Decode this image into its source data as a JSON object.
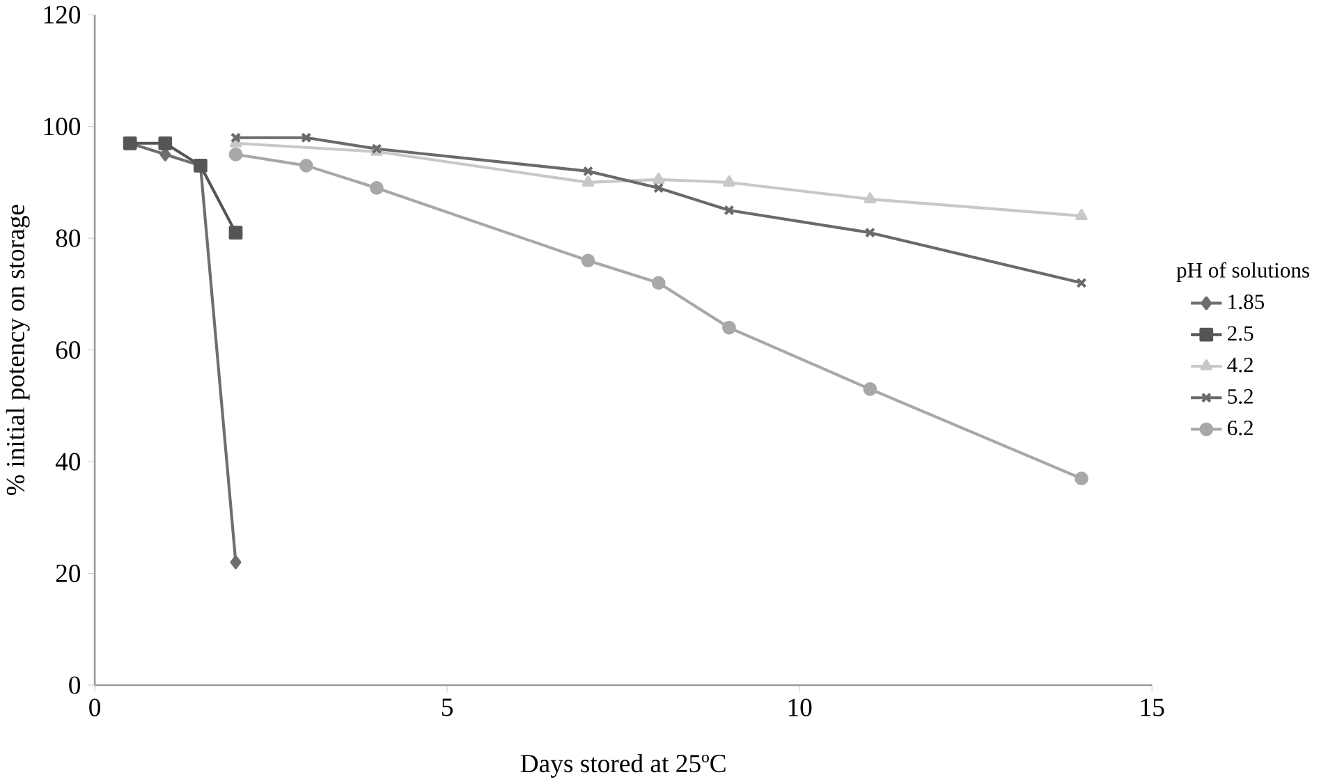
{
  "chart_data": {
    "type": "line",
    "xlabel": "Days stored at 25ºC",
    "ylabel": "% initial potency on storage",
    "legend_title": "pH of solutions",
    "legend": "right",
    "grid": false,
    "xlim": [
      0,
      15
    ],
    "xticks": [
      0,
      5,
      10,
      15
    ],
    "ylim": [
      0,
      120
    ],
    "yticks": [
      0,
      20,
      40,
      60,
      80,
      100,
      120
    ],
    "series": [
      {
        "name": "1.85",
        "color": "#6e6e6e",
        "marker": "diamond",
        "x": [
          0.5,
          1,
          1.5,
          2
        ],
        "values": [
          97,
          95,
          93,
          22
        ]
      },
      {
        "name": "2.5",
        "color": "#555555",
        "marker": "square",
        "x": [
          0.5,
          1,
          1.5,
          2
        ],
        "values": [
          97,
          97,
          93,
          81
        ]
      },
      {
        "name": "4.2",
        "color": "#c8c8c8",
        "marker": "triangle",
        "x": [
          2,
          4,
          7,
          8,
          9,
          11,
          14
        ],
        "values": [
          97,
          95.5,
          90,
          90.5,
          90,
          87,
          84
        ]
      },
      {
        "name": "5.2",
        "color": "#6a6a6a",
        "marker": "cross",
        "x": [
          2,
          3,
          4,
          7,
          8,
          9,
          11,
          14
        ],
        "values": [
          98,
          98,
          96,
          92,
          89,
          85,
          81,
          72
        ]
      },
      {
        "name": "6.2",
        "color": "#a8a8a8",
        "marker": "circle",
        "x": [
          2,
          3,
          4,
          7,
          8,
          9,
          11,
          14
        ],
        "values": [
          95,
          93,
          89,
          76,
          72,
          64,
          53,
          37
        ]
      }
    ]
  }
}
